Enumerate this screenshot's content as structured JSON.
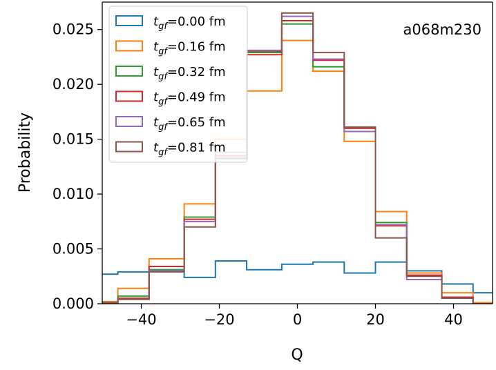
{
  "chart_data": {
    "type": "step",
    "title": "",
    "annotation": "a068m230",
    "xlabel": "Q",
    "ylabel": "Probability",
    "xlim": [
      -50,
      50
    ],
    "ylim": [
      0,
      0.0275
    ],
    "grid": false,
    "legend_position": "top-left",
    "bin_edges": [
      -54,
      -46,
      -38,
      -29,
      -21,
      -13,
      -4,
      4,
      12,
      20,
      28,
      37,
      45,
      53
    ],
    "x_ticks": [
      -40,
      -20,
      0,
      20,
      40
    ],
    "x_tick_labels": [
      "−40",
      "−20",
      "0",
      "20",
      "40"
    ],
    "y_ticks": [
      0.0,
      0.005,
      0.01,
      0.015,
      0.02,
      0.025
    ],
    "y_tick_labels": [
      "0.000",
      "0.005",
      "0.010",
      "0.015",
      "0.020",
      "0.025"
    ],
    "series": [
      {
        "name": "t_gf=0.00 fm",
        "legend_sub": "gf",
        "legend_value": "=0.00 fm",
        "color": "#1f77b4",
        "values": [
          0.0027,
          0.0029,
          0.0031,
          0.0024,
          0.0039,
          0.0031,
          0.0036,
          0.0038,
          0.0028,
          0.0038,
          0.003,
          0.0018,
          0.001
        ]
      },
      {
        "name": "t_gf=0.16 fm",
        "legend_sub": "gf",
        "legend_value": "=0.16 fm",
        "color": "#ff7f0e",
        "values": [
          0.0002,
          0.0014,
          0.0041,
          0.0091,
          0.015,
          0.0194,
          0.024,
          0.0212,
          0.0148,
          0.0084,
          0.0028,
          0.001,
          0.0001
        ]
      },
      {
        "name": "t_gf=0.32 fm",
        "legend_sub": "gf",
        "legend_value": "=0.32 fm",
        "color": "#2ca02c",
        "values": [
          0.0001,
          0.0007,
          0.0031,
          0.0079,
          0.0138,
          0.0229,
          0.0255,
          0.0216,
          0.016,
          0.0074,
          0.0026,
          0.0006,
          0.0
        ]
      },
      {
        "name": "t_gf=0.49 fm",
        "legend_sub": "gf",
        "legend_value": "=0.49 fm",
        "color": "#d62728",
        "values": [
          0.0001,
          0.0005,
          0.0034,
          0.0077,
          0.0135,
          0.0227,
          0.0258,
          0.0222,
          0.016,
          0.0071,
          0.0026,
          0.0006,
          0.0
        ]
      },
      {
        "name": "t_gf=0.65 fm",
        "legend_sub": "gf",
        "legend_value": "=0.65 fm",
        "color": "#9467bd",
        "values": [
          0.0001,
          0.0004,
          0.003,
          0.0075,
          0.0132,
          0.0231,
          0.0262,
          0.0223,
          0.0157,
          0.0072,
          0.0022,
          0.0005,
          0.0
        ]
      },
      {
        "name": "t_gf=0.81 fm",
        "legend_sub": "gf",
        "legend_value": "=0.81 fm",
        "color": "#8c564b",
        "values": [
          0.0001,
          0.0004,
          0.0029,
          0.007,
          0.0133,
          0.023,
          0.0265,
          0.0229,
          0.0161,
          0.006,
          0.0025,
          0.0005,
          0.0
        ]
      }
    ]
  }
}
